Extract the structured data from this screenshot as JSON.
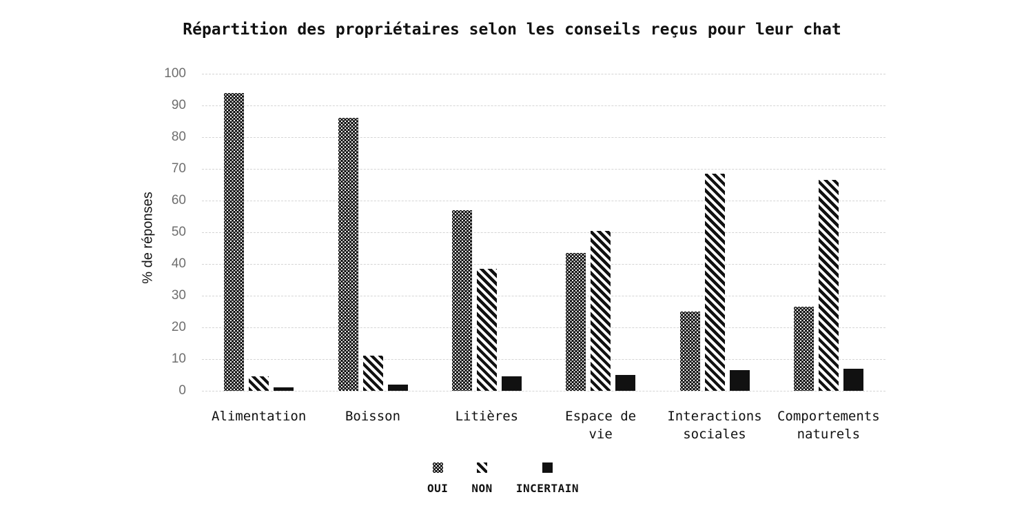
{
  "chart_data": {
    "type": "bar",
    "title": "Répartition des propriétaires selon les conseils reçus pour leur chat",
    "ylabel": "% de réponses",
    "ylim": [
      0,
      100
    ],
    "yticks": [
      0,
      10,
      20,
      30,
      40,
      50,
      60,
      70,
      80,
      90,
      100
    ],
    "grid": true,
    "grid_style": "dashed-light-gray",
    "legend_position": "bottom-center",
    "categories": [
      "Alimentation",
      "Boisson",
      "Litières",
      "Espace de vie",
      "Interactions sociales",
      "Comportements naturels"
    ],
    "category_label_lines": [
      [
        "Alimentation"
      ],
      [
        "Boisson"
      ],
      [
        "Litières"
      ],
      [
        "Espace de",
        "vie"
      ],
      [
        "Interactions",
        "sociales"
      ],
      [
        "Comportements",
        "naturels"
      ]
    ],
    "series": [
      {
        "name": "OUI",
        "pattern": "dotted-grid",
        "values": [
          94,
          86,
          57,
          43.5,
          25,
          26.5
        ]
      },
      {
        "name": "NON",
        "pattern": "diagonal-stripes",
        "values": [
          4.5,
          11,
          38.5,
          50.5,
          68.5,
          66.5
        ]
      },
      {
        "name": "INCERTAIN",
        "pattern": "solid",
        "values": [
          1,
          2,
          4.5,
          5,
          6.5,
          7
        ]
      }
    ],
    "colors": {
      "bar": "#111111",
      "grid": "#d4d4d4",
      "tick_label": "#6e6e6e",
      "text": "#111111",
      "background": "#ffffff"
    }
  }
}
